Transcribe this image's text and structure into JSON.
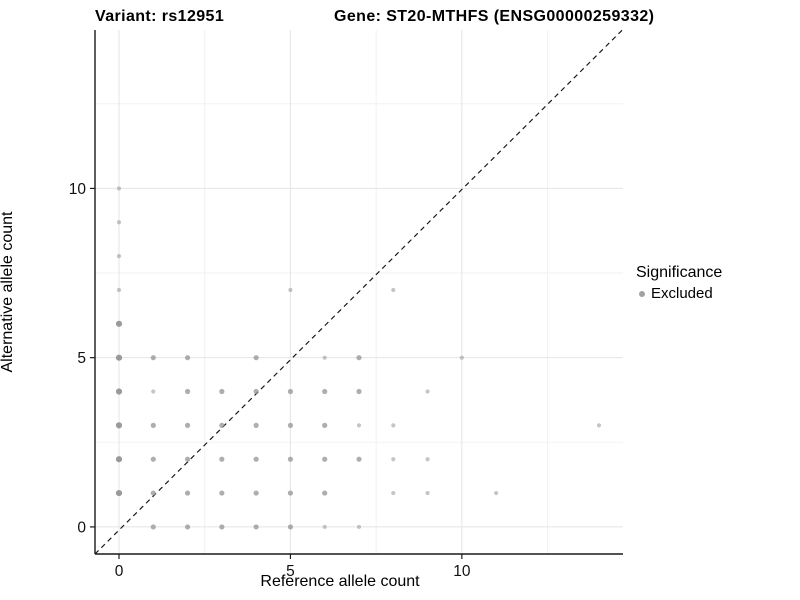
{
  "chart_data": {
    "type": "scatter",
    "title_left": "Variant: rs12951",
    "title_right": "Gene: ST20-MTHFS (ENSG00000259332)",
    "xlabel": "Reference allele count",
    "ylabel": "Alternative allele count",
    "x_ticks": [
      0,
      5,
      10
    ],
    "y_ticks": [
      0,
      5,
      10
    ],
    "x_minor_ticks": [
      2.5,
      7.5,
      12.5
    ],
    "y_minor_ticks": [
      2.5,
      7.5,
      12.5
    ],
    "xlim": [
      -0.7,
      14.7
    ],
    "ylim": [
      -0.8,
      14.68
    ],
    "grid": true,
    "identity_line": {
      "style": "dashed",
      "color": "#1a1a1a",
      "from": [
        -0.7,
        -0.7
      ],
      "to": [
        14.7,
        14.7
      ]
    },
    "point_color": "#8f8f8f",
    "major_grid_color": "#e4e4e4",
    "minor_grid_color": "#f2f2f2",
    "axis_line_color": "#1a1a1a",
    "legend": {
      "title": "Significance",
      "position": "right",
      "items": [
        {
          "label": "Excluded",
          "color": "#a3a3a3"
        }
      ]
    },
    "points_note": "each point is [reference_allele_count, alternative_allele_count, size_class]",
    "points": [
      [
        1,
        0,
        2
      ],
      [
        2,
        0,
        2
      ],
      [
        3,
        0,
        2
      ],
      [
        4,
        0,
        2
      ],
      [
        5,
        0,
        2
      ],
      [
        6,
        0,
        1
      ],
      [
        7,
        0,
        1
      ],
      [
        0,
        1,
        3
      ],
      [
        1,
        1,
        2
      ],
      [
        2,
        1,
        2
      ],
      [
        3,
        1,
        2
      ],
      [
        4,
        1,
        2
      ],
      [
        5,
        1,
        2
      ],
      [
        6,
        1,
        2
      ],
      [
        8,
        1,
        1
      ],
      [
        9,
        1,
        1
      ],
      [
        11,
        1,
        1
      ],
      [
        0,
        2,
        3
      ],
      [
        1,
        2,
        2
      ],
      [
        2,
        2,
        2
      ],
      [
        3,
        2,
        2
      ],
      [
        4,
        2,
        2
      ],
      [
        5,
        2,
        2
      ],
      [
        6,
        2,
        2
      ],
      [
        7,
        2,
        2
      ],
      [
        8,
        2,
        1
      ],
      [
        9,
        2,
        1
      ],
      [
        0,
        3,
        3
      ],
      [
        1,
        3,
        2
      ],
      [
        2,
        3,
        2
      ],
      [
        3,
        3,
        2
      ],
      [
        4,
        3,
        2
      ],
      [
        5,
        3,
        2
      ],
      [
        6,
        3,
        2
      ],
      [
        7,
        3,
        1
      ],
      [
        8,
        3,
        1
      ],
      [
        14,
        3,
        1
      ],
      [
        0,
        4,
        3
      ],
      [
        1,
        4,
        1
      ],
      [
        2,
        4,
        2
      ],
      [
        3,
        4,
        2
      ],
      [
        4,
        4,
        2
      ],
      [
        5,
        4,
        2
      ],
      [
        6,
        4,
        2
      ],
      [
        7,
        4,
        2
      ],
      [
        9,
        4,
        1
      ],
      [
        0,
        5,
        3
      ],
      [
        1,
        5,
        2
      ],
      [
        2,
        5,
        2
      ],
      [
        4,
        5,
        2
      ],
      [
        6,
        5,
        1
      ],
      [
        7,
        5,
        2
      ],
      [
        10,
        5,
        1
      ],
      [
        0,
        6,
        3
      ],
      [
        0,
        7,
        1
      ],
      [
        5,
        7,
        1
      ],
      [
        8,
        7,
        1
      ],
      [
        0,
        8,
        1
      ],
      [
        0,
        9,
        1
      ],
      [
        0,
        10,
        1
      ]
    ]
  }
}
